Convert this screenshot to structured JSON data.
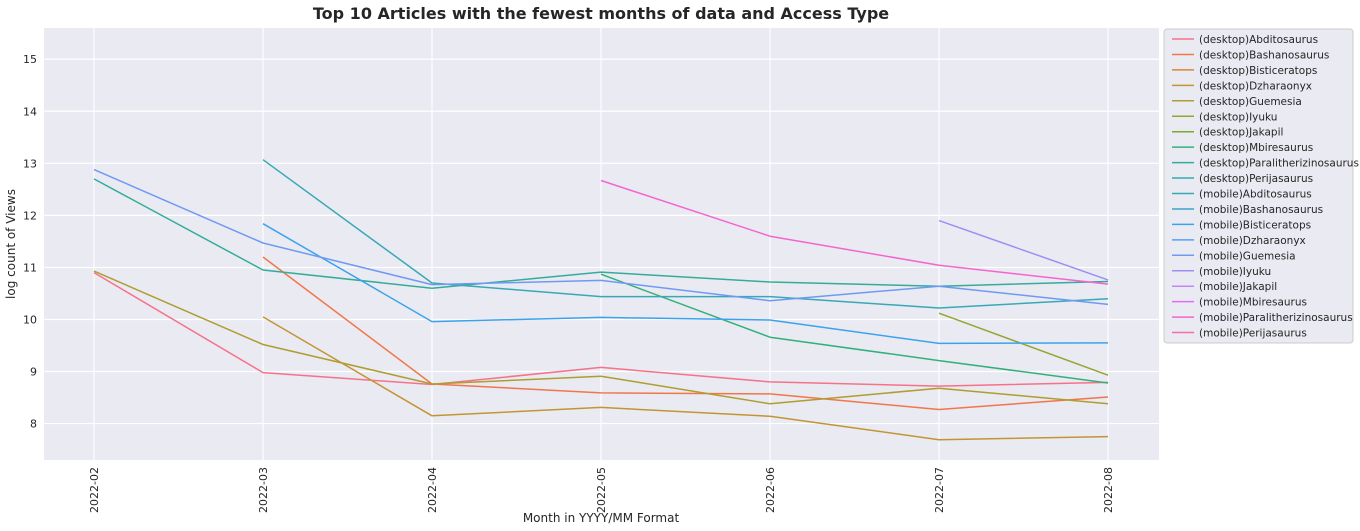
{
  "chart_data": {
    "type": "line",
    "title": "Top 10 Articles with the fewest months of data and Access Type",
    "xlabel": "Month in YYYY/MM Format",
    "ylabel": "log count of Views",
    "categories": [
      "2022-02",
      "2022-03",
      "2022-04",
      "2022-05",
      "2022-06",
      "2022-07",
      "2022-08"
    ],
    "y_ticks": [
      8,
      9,
      10,
      11,
      12,
      13,
      14,
      15
    ],
    "ylim": [
      7.3,
      15.6
    ],
    "grid": true,
    "legend_position": "outside-top-right",
    "series": [
      {
        "name": "(desktop)Abditosaurus",
        "color": "#f77189",
        "values": [
          10.9,
          8.98,
          8.75,
          9.08,
          8.8,
          8.72,
          8.79
        ]
      },
      {
        "name": "(desktop)Bashanosaurus",
        "color": "#f2764a",
        "values": [
          null,
          11.2,
          8.76,
          8.59,
          8.57,
          8.27,
          8.51
        ]
      },
      {
        "name": "(desktop)Bisticeratops",
        "color": "#db8431",
        "values": [
          null,
          null,
          null,
          null,
          null,
          null,
          null
        ]
      },
      {
        "name": "(desktop)Dzharaonyx",
        "color": "#c39532",
        "values": [
          null,
          10.05,
          8.15,
          8.31,
          8.14,
          7.69,
          7.75
        ]
      },
      {
        "name": "(desktop)Guemesia",
        "color": "#ae9d31",
        "values": [
          10.93,
          9.52,
          8.76,
          8.91,
          8.38,
          8.68,
          8.38
        ]
      },
      {
        "name": "(desktop)Iyuku",
        "color": "#97a431",
        "values": [
          null,
          null,
          null,
          null,
          null,
          10.12,
          8.93
        ]
      },
      {
        "name": "(desktop)Jakapil",
        "color": "#77ab31",
        "values": [
          null,
          null,
          null,
          null,
          null,
          null,
          null
        ]
      },
      {
        "name": "(desktop)Mbiresaurus",
        "color": "#33b07a",
        "values": [
          null,
          null,
          null,
          10.87,
          9.66,
          9.21,
          8.78
        ]
      },
      {
        "name": "(desktop)Paralitherizinosaurus",
        "color": "#35ac9a",
        "values": [
          12.7,
          10.95,
          10.6,
          10.91,
          10.72,
          10.64,
          10.73
        ]
      },
      {
        "name": "(desktop)Perijasaurus",
        "color": "#36aaa8",
        "values": [
          null,
          null,
          null,
          null,
          null,
          null,
          null
        ]
      },
      {
        "name": "(mobile)Abditosaurus",
        "color": "#38a8b6",
        "values": [
          null,
          13.07,
          10.7,
          10.44,
          10.44,
          10.22,
          10.4
        ]
      },
      {
        "name": "(mobile)Bashanosaurus",
        "color": "#3aa5c8",
        "values": [
          null,
          null,
          null,
          null,
          null,
          null,
          null
        ]
      },
      {
        "name": "(mobile)Bisticeratops",
        "color": "#3ba3ec",
        "values": [
          null,
          11.84,
          9.96,
          10.04,
          9.99,
          9.54,
          9.55
        ]
      },
      {
        "name": "(mobile)Dzharaonyx",
        "color": "#5b9ef4",
        "values": [
          null,
          null,
          null,
          null,
          null,
          null,
          null
        ]
      },
      {
        "name": "(mobile)Guemesia",
        "color": "#6e9af4",
        "values": [
          12.88,
          11.47,
          10.67,
          10.75,
          10.36,
          10.64,
          10.29
        ]
      },
      {
        "name": "(mobile)Iyuku",
        "color": "#9d8ef4",
        "values": [
          null,
          null,
          null,
          null,
          null,
          11.9,
          10.76
        ]
      },
      {
        "name": "(mobile)Jakapil",
        "color": "#c285f4",
        "values": [
          null,
          null,
          null,
          null,
          null,
          null,
          null
        ]
      },
      {
        "name": "(mobile)Mbiresaurus",
        "color": "#dd6ef4",
        "values": [
          null,
          null,
          null,
          null,
          null,
          null,
          null
        ]
      },
      {
        "name": "(mobile)Paralitherizinosaurus",
        "color": "#f565d0",
        "values": [
          null,
          null,
          null,
          12.67,
          11.6,
          11.04,
          10.68
        ]
      },
      {
        "name": "(mobile)Perijasaurus",
        "color": "#f66bad",
        "values": [
          null,
          null,
          null,
          null,
          null,
          null,
          null
        ]
      }
    ]
  }
}
